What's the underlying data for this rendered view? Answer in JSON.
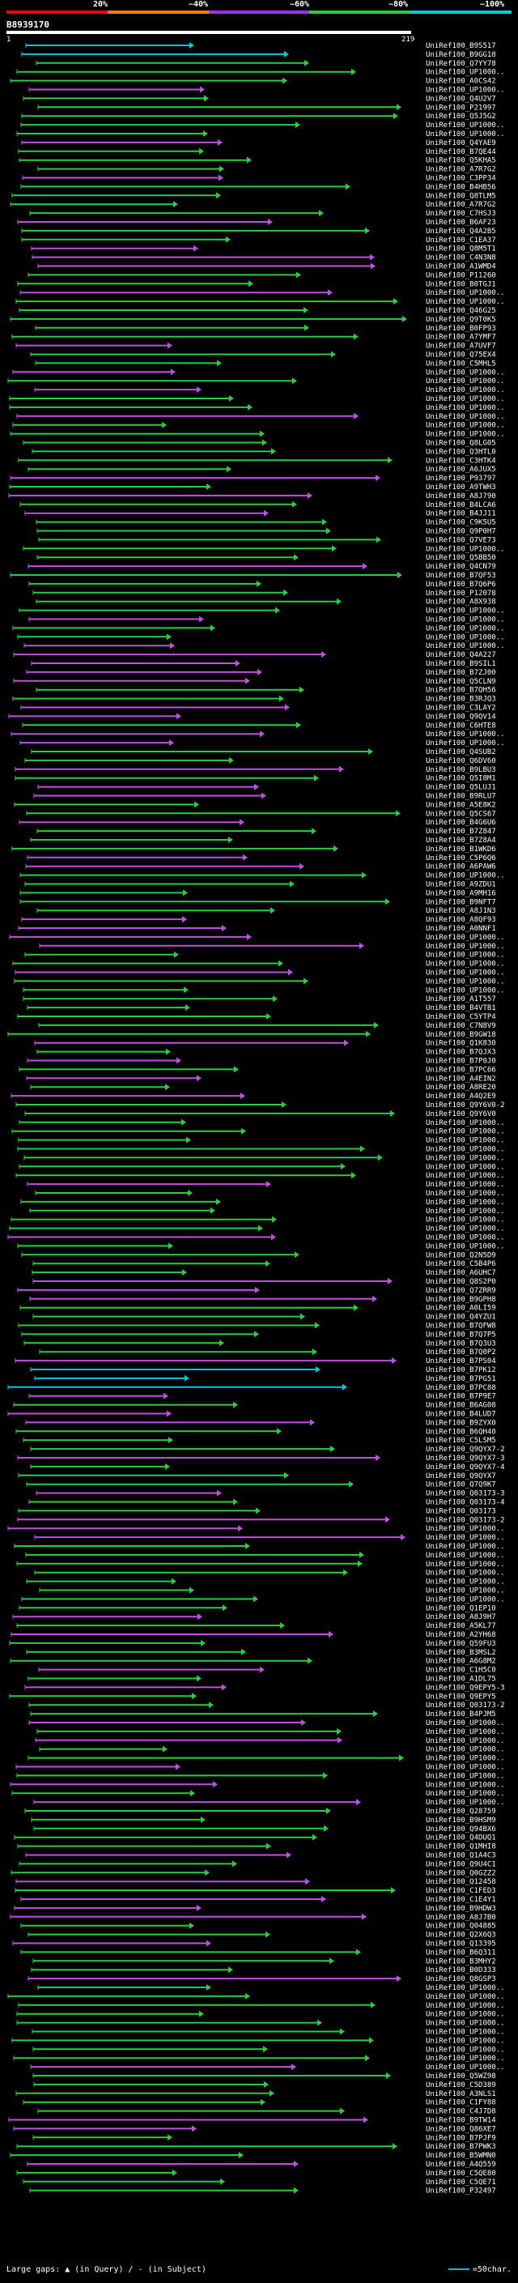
{
  "header": {
    "percent_labels": [
      "20%",
      "~40%",
      "~60%",
      "~80%",
      "~100%"
    ],
    "colors": [
      "#ff0000",
      "#ff7f00",
      "#9b30ff",
      "#2ecc40",
      "#00d0d0"
    ],
    "query_id": "B8939170",
    "query_start": "1",
    "query_end": "219"
  },
  "footer": {
    "gaps_text": "Large gaps: ▲ (in Query) / - (in Subject)",
    "scale_text": "=50char."
  },
  "hits": [
    "UniRef100_B9S517",
    "UniRef100_B9GG18",
    "UniRef100_Q7YY78",
    "UniRef100_UP1000..",
    "UniRef100_A0CS42",
    "UniRef100_UP1000..",
    "UniRef100_Q4U2V7",
    "UniRef100_P21997",
    "UniRef100_Q5J5G2",
    "UniRef100_UP1000..",
    "UniRef100_UP1000..",
    "UniRef100_Q4YAE9",
    "UniRef100_B7QE44",
    "UniRef100_Q5KHA5",
    "UniRef100_A7R7G2",
    "UniRef100_C3PP34",
    "UniRef100_B4HB56",
    "UniRef100_Q8TLM5",
    "UniRef100_A7R7G2",
    "UniRef100_C7HSJ3",
    "UniRef100_B6AF23",
    "UniRef100_Q4A2B5",
    "UniRef100_C1EA37",
    "UniRef100_Q8M5T1",
    "UniRef100_C4N3N8",
    "UniRef100_A1WMD4",
    "UniRef100_P11260",
    "UniRef100_B0TGJ1",
    "UniRef100_UP1000..",
    "UniRef100_UP1000..",
    "UniRef100_Q46G25",
    "UniRef100_Q9T0K5",
    "UniRef100_B0FP93",
    "UniRef100_A7YMF7",
    "UniRef100_A7UVF7",
    "UniRef100_Q75EX4",
    "UniRef100_C5MHL5",
    "UniRef100_UP1000..",
    "UniRef100_UP1000..",
    "UniRef100_UP1000..",
    "UniRef100_UP1000..",
    "UniRef100_UP1000..",
    "UniRef100_UP1000..",
    "UniRef100_UP1000..",
    "UniRef100_UP1000..",
    "UniRef100_Q8LG05",
    "UniRef100_Q3HTL0",
    "UniRef100_C3HTK4",
    "UniRef100_A6JUX5",
    "UniRef100_P93797",
    "UniRef100_A9TWH3",
    "UniRef100_A8J790",
    "UniRef100_B4LCA6",
    "UniRef100_B4JJ11",
    "UniRef100_C9K5U5",
    "UniRef100_Q9P0H7",
    "UniRef100_Q7VE73",
    "UniRef100_UP1000..",
    "UniRef100_Q5BB50",
    "UniRef100_Q4CN79",
    "UniRef100_B7QF53",
    "UniRef100_B7Q6P6",
    "UniRef100_P12078",
    "UniRef100_A8X938",
    "UniRef100_UP1000..",
    "UniRef100_UP1000..",
    "UniRef100_UP1000..",
    "UniRef100_UP1000..",
    "UniRef100_UP1000..",
    "UniRef100_Q4A227",
    "UniRef100_B9SIL1",
    "UniRef100_B7ZJ00",
    "UniRef100_Q5CLN9",
    "UniRef100_B7QH56",
    "UniRef100_B3RJQ3",
    "UniRef100_C3LAY2",
    "UniRef100_Q9QV14",
    "UniRef100_C6HTE8",
    "UniRef100_UP1000..",
    "UniRef100_UP1000..",
    "UniRef100_Q4SUB2",
    "UniRef100_Q6DV60",
    "UniRef100_B9LBU3",
    "UniRef100_Q5I8M1",
    "UniRef100_Q5LUJ1",
    "UniRef100_B9RLU7",
    "UniRef100_A5E8K2",
    "UniRef100_Q5CS67",
    "UniRef100_B4G6U6",
    "UniRef100_B7Z847",
    "UniRef100_B7Z8A4",
    "UniRef100_B1WKD6",
    "UniRef100_C5P6Q6",
    "UniRef100_A6PAW6",
    "UniRef100_UP1000..",
    "UniRef100_A9ZDU1",
    "UniRef100_A9MH16",
    "UniRef100_B9NFT7",
    "UniRef100_A8J1N3",
    "UniRef100_A8QF93",
    "UniRef100_A0NNF1",
    "UniRef100_UP1000..",
    "UniRef100_UP1000..",
    "UniRef100_UP1000..",
    "UniRef100_UP1000..",
    "UniRef100_UP1000..",
    "UniRef100_UP1000..",
    "UniRef100_UP1000..",
    "UniRef100_A1T557",
    "UniRef100_B4VTB1",
    "UniRef100_C5YTP4",
    "UniRef100_C7N8V9",
    "UniRef100_B9GW18",
    "UniRef100_Q1K830",
    "UniRef100_B7QJX3",
    "UniRef100_B7P0J0",
    "UniRef100_B7PC66",
    "UniRef100_A4EIN2",
    "UniRef100_A8RE20",
    "UniRef100_A4Q2E9",
    "UniRef100_Q9Y6V0-2",
    "UniRef100_Q9Y6V0",
    "UniRef100_UP1000..",
    "UniRef100_UP1000..",
    "UniRef100_UP1000..",
    "UniRef100_UP1000..",
    "UniRef100_UP1000..",
    "UniRef100_UP1000..",
    "UniRef100_UP1000..",
    "UniRef100_UP1000..",
    "UniRef100_UP1000..",
    "UniRef100_UP1000..",
    "UniRef100_UP1000..",
    "UniRef100_UP1000..",
    "UniRef100_UP1000..",
    "UniRef100_UP1000..",
    "UniRef100_UP1000..",
    "UniRef100_Q2N5D9",
    "UniRef100_C5B4P6",
    "UniRef100_A6UHC7",
    "UniRef100_Q8S2P0",
    "UniRef100_Q7ZRR9",
    "UniRef100_B9GPH8",
    "UniRef100_A0LI59",
    "UniRef100_Q4YZU1",
    "UniRef100_B7QFW8",
    "UniRef100_B7Q7P5",
    "UniRef100_B7Q3U3",
    "UniRef100_B7Q0P2",
    "UniRef100_B7PS04",
    "UniRef100_B7PK12",
    "UniRef100_B7PG51",
    "UniRef100_B7PC88",
    "UniRef100_B7P9E7",
    "UniRef100_B6AG08",
    "UniRef100_B4LUD7",
    "UniRef100_B9ZYX0",
    "UniRef100_B6QH40",
    "UniRef100_C5LSM5",
    "UniRef100_Q9QYX7-2",
    "UniRef100_Q9QYX7-3",
    "UniRef100_Q9QYX7-4",
    "UniRef100_Q9QYX7",
    "UniRef100_Q7Q9K7",
    "UniRef100_Q03173-3",
    "UniRef100_Q03173-4",
    "UniRef100_Q03173",
    "UniRef100_Q03173-2",
    "UniRef100_UP1000..",
    "UniRef100_UP1000..",
    "UniRef100_UP1000..",
    "UniRef100_UP1000..",
    "UniRef100_UP1000..",
    "UniRef100_UP1000..",
    "UniRef100_UP1000..",
    "UniRef100_UP1000..",
    "UniRef100_UP1000..",
    "UniRef100_Q1EP10",
    "UniRef100_A8J9H7",
    "UniRef100_A5KL77",
    "UniRef100_A2YH68",
    "UniRef100_Q59FU3",
    "UniRef100_B3MSL2",
    "UniRef100_A6G8M2",
    "UniRef100_C1H5C0",
    "UniRef100_A1DL75",
    "UniRef100_Q9EPY5-3",
    "UniRef100_Q9EPY5",
    "UniRef100_Q03173-2",
    "UniRef100_B4PJM5",
    "UniRef100_UP1000..",
    "UniRef100_UP1000..",
    "UniRef100_UP1000..",
    "UniRef100_UP1000..",
    "UniRef100_UP1000..",
    "UniRef100_UP1000..",
    "UniRef100_UP1000..",
    "UniRef100_UP1000..",
    "UniRef100_UP1000..",
    "UniRef100_UP1000..",
    "UniRef100_Q28759",
    "UniRef100_B9HSM9",
    "UniRef100_Q94BX6",
    "UniRef100_Q4DUQ1",
    "UniRef100_Q1MHI8",
    "UniRef100_Q1A4C3",
    "UniRef100_Q9U4C1",
    "UniRef100_Q0GZZ2",
    "UniRef100_Q12458",
    "UniRef100_C1FED3",
    "UniRef100_C1E4Y1",
    "UniRef100_B9HDW3",
    "UniRef100_A8J7B0",
    "UniRef100_Q04885",
    "UniRef100_Q2X6Q3",
    "UniRef100_Q13395",
    "UniRef100_B6Q311",
    "UniRef100_B3MHY2",
    "UniRef100_B0D333",
    "UniRef100_Q8GSP3",
    "UniRef100_UP1000..",
    "UniRef100_UP1000..",
    "UniRef100_UP1000..",
    "UniRef100_UP1000..",
    "UniRef100_UP1000..",
    "UniRef100_UP1000..",
    "UniRef100_UP1000..",
    "UniRef100_UP1000..",
    "UniRef100_UP1000..",
    "UniRef100_UP1000..",
    "UniRef100_Q5WZ98",
    "UniRef100_C5D389",
    "UniRef100_A3NLS1",
    "UniRef100_C1FY88",
    "UniRef100_C4J7D8",
    "UniRef100_B9TW14",
    "UniRef100_Q86XE7",
    "UniRef100_B7PJF9",
    "UniRef100_B7PWK3",
    "UniRef100_B5WMN0",
    "UniRef100_A4Q559",
    "UniRef100_C5QE80",
    "UniRef100_C5QE71",
    "UniRef100_P32497"
  ]
}
